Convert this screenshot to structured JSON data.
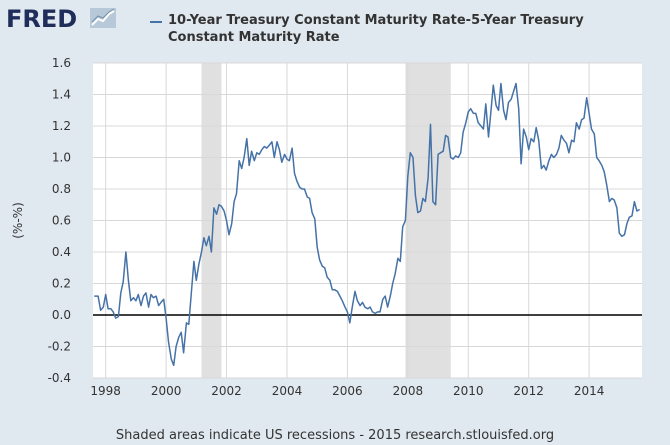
{
  "logo": {
    "text": "FRED"
  },
  "footer": {
    "note": "Shaded areas indicate US recessions - 2015 research.stlouisfed.org"
  },
  "colors": {
    "background": "#e1e9f0",
    "plot": "#ffffff",
    "series": "#4572a7",
    "recession": "#e0e0e0",
    "zero_line": "#000000"
  },
  "chart_data": {
    "type": "line",
    "title": "",
    "xlabel": "",
    "ylabel": "(%-%)",
    "ylim": [
      -0.4,
      1.6
    ],
    "xlim": [
      1997.58,
      2015.75
    ],
    "yticks": [
      -0.4,
      -0.2,
      0.0,
      0.2,
      0.4,
      0.6,
      0.8,
      1.0,
      1.2,
      1.4,
      1.6
    ],
    "yticklabels": [
      "-0.4",
      "-0.2",
      "0.0",
      "0.2",
      "0.4",
      "0.6",
      "0.8",
      "1.0",
      "1.2",
      "1.4",
      "1.6"
    ],
    "xticks": [
      1998,
      2000,
      2002,
      2004,
      2006,
      2008,
      2010,
      2012,
      2014
    ],
    "xticklabels": [
      "1998",
      "2000",
      "2002",
      "2004",
      "2006",
      "2008",
      "2010",
      "2012",
      "2014"
    ],
    "grid": true,
    "legend": "top",
    "recessions": [
      [
        2001.17,
        2001.83
      ],
      [
        2007.92,
        2009.42
      ]
    ],
    "series": [
      {
        "name": "10-Year Treasury Constant Maturity Rate-5-Year Treasury Constant Maturity Rate",
        "x": [
          1997.62,
          1997.75,
          1997.83,
          1997.92,
          1998.0,
          1998.08,
          1998.17,
          1998.25,
          1998.33,
          1998.42,
          1998.5,
          1998.58,
          1998.67,
          1998.75,
          1998.83,
          1998.92,
          1999.0,
          1999.08,
          1999.17,
          1999.25,
          1999.33,
          1999.42,
          1999.5,
          1999.58,
          1999.67,
          1999.75,
          1999.83,
          1999.92,
          2000.0,
          2000.08,
          2000.17,
          2000.25,
          2000.33,
          2000.42,
          2000.5,
          2000.58,
          2000.67,
          2000.75,
          2000.83,
          2000.92,
          2001.0,
          2001.08,
          2001.17,
          2001.25,
          2001.33,
          2001.42,
          2001.5,
          2001.58,
          2001.67,
          2001.75,
          2001.83,
          2001.92,
          2002.0,
          2002.08,
          2002.17,
          2002.25,
          2002.33,
          2002.42,
          2002.5,
          2002.58,
          2002.67,
          2002.75,
          2002.83,
          2002.92,
          2003.0,
          2003.08,
          2003.17,
          2003.25,
          2003.33,
          2003.42,
          2003.5,
          2003.58,
          2003.67,
          2003.75,
          2003.83,
          2003.92,
          2004.0,
          2004.08,
          2004.17,
          2004.25,
          2004.33,
          2004.42,
          2004.5,
          2004.58,
          2004.67,
          2004.75,
          2004.83,
          2004.92,
          2005.0,
          2005.08,
          2005.17,
          2005.25,
          2005.33,
          2005.42,
          2005.5,
          2005.58,
          2005.67,
          2005.75,
          2005.83,
          2005.92,
          2006.0,
          2006.08,
          2006.17,
          2006.25,
          2006.33,
          2006.42,
          2006.5,
          2006.58,
          2006.67,
          2006.75,
          2006.83,
          2006.92,
          2007.0,
          2007.08,
          2007.17,
          2007.25,
          2007.33,
          2007.42,
          2007.5,
          2007.58,
          2007.67,
          2007.75,
          2007.83,
          2007.92,
          2008.0,
          2008.08,
          2008.17,
          2008.25,
          2008.33,
          2008.42,
          2008.5,
          2008.58,
          2008.67,
          2008.75,
          2008.83,
          2008.92,
          2009.0,
          2009.08,
          2009.17,
          2009.25,
          2009.33,
          2009.42,
          2009.5,
          2009.58,
          2009.67,
          2009.75,
          2009.83,
          2009.92,
          2010.0,
          2010.08,
          2010.17,
          2010.25,
          2010.33,
          2010.42,
          2010.5,
          2010.58,
          2010.67,
          2010.75,
          2010.83,
          2010.92,
          2011.0,
          2011.08,
          2011.17,
          2011.25,
          2011.33,
          2011.42,
          2011.5,
          2011.58,
          2011.67,
          2011.75,
          2011.83,
          2011.92,
          2012.0,
          2012.08,
          2012.17,
          2012.25,
          2012.33,
          2012.42,
          2012.5,
          2012.58,
          2012.67,
          2012.75,
          2012.83,
          2012.92,
          2013.0,
          2013.08,
          2013.17,
          2013.25,
          2013.33,
          2013.42,
          2013.5,
          2013.58,
          2013.67,
          2013.75,
          2013.83,
          2013.92,
          2014.0,
          2014.08,
          2014.17,
          2014.25,
          2014.33,
          2014.42,
          2014.5,
          2014.58,
          2014.67,
          2014.75,
          2014.83,
          2014.92,
          2015.0,
          2015.08,
          2015.17,
          2015.25,
          2015.33,
          2015.42,
          2015.5,
          2015.58,
          2015.67
        ],
        "values": [
          0.12,
          0.12,
          0.03,
          0.05,
          0.13,
          0.04,
          0.04,
          0.02,
          -0.02,
          -0.01,
          0.14,
          0.21,
          0.4,
          0.22,
          0.09,
          0.11,
          0.09,
          0.13,
          0.06,
          0.12,
          0.14,
          0.05,
          0.13,
          0.11,
          0.12,
          0.06,
          0.08,
          0.1,
          -0.02,
          -0.17,
          -0.28,
          -0.32,
          -0.2,
          -0.14,
          -0.11,
          -0.24,
          -0.05,
          -0.06,
          0.13,
          0.34,
          0.22,
          0.32,
          0.4,
          0.49,
          0.44,
          0.5,
          0.4,
          0.68,
          0.64,
          0.7,
          0.69,
          0.66,
          0.6,
          0.51,
          0.58,
          0.72,
          0.77,
          0.98,
          0.93,
          1.0,
          1.12,
          0.95,
          1.04,
          0.98,
          1.03,
          1.02,
          1.05,
          1.07,
          1.06,
          1.08,
          1.1,
          1.0,
          1.1,
          1.05,
          0.97,
          1.02,
          0.99,
          0.98,
          1.06,
          0.9,
          0.85,
          0.81,
          0.8,
          0.8,
          0.75,
          0.74,
          0.65,
          0.61,
          0.43,
          0.35,
          0.31,
          0.3,
          0.24,
          0.22,
          0.16,
          0.16,
          0.15,
          0.12,
          0.09,
          0.05,
          0.02,
          -0.05,
          0.06,
          0.15,
          0.09,
          0.06,
          0.08,
          0.05,
          0.04,
          0.05,
          0.02,
          0.01,
          0.02,
          0.02,
          0.1,
          0.12,
          0.05,
          0.12,
          0.2,
          0.26,
          0.36,
          0.34,
          0.56,
          0.6,
          0.88,
          1.03,
          1.0,
          0.76,
          0.65,
          0.66,
          0.74,
          0.72,
          0.87,
          1.21,
          0.72,
          0.7,
          1.02,
          1.03,
          1.04,
          1.14,
          1.13,
          1.0,
          0.99,
          1.01,
          1.0,
          1.03,
          1.16,
          1.22,
          1.29,
          1.31,
          1.28,
          1.28,
          1.22,
          1.2,
          1.18,
          1.34,
          1.13,
          1.29,
          1.46,
          1.33,
          1.3,
          1.47,
          1.3,
          1.24,
          1.35,
          1.37,
          1.42,
          1.47,
          1.31,
          0.96,
          1.18,
          1.13,
          1.05,
          1.12,
          1.1,
          1.19,
          1.11,
          0.93,
          0.95,
          0.92,
          0.98,
          1.02,
          1.0,
          1.02,
          1.06,
          1.14,
          1.11,
          1.09,
          1.03,
          1.11,
          1.1,
          1.22,
          1.18,
          1.24,
          1.25,
          1.38,
          1.28,
          1.18,
          1.15,
          1.0,
          0.98,
          0.95,
          0.91,
          0.83,
          0.72,
          0.74,
          0.73,
          0.68,
          0.52,
          0.5,
          0.51,
          0.58,
          0.62,
          0.63,
          0.72,
          0.66,
          0.67
        ]
      }
    ]
  }
}
